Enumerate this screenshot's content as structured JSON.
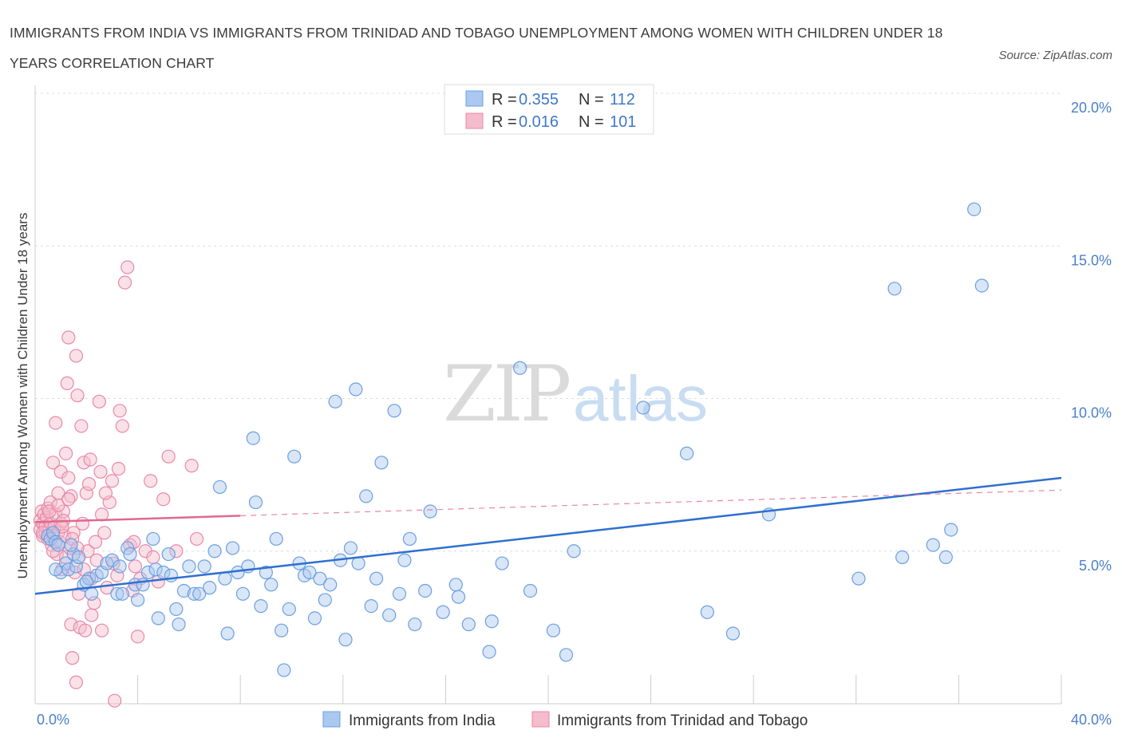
{
  "header": {
    "title": "IMMIGRANTS FROM INDIA VS IMMIGRANTS FROM TRINIDAD AND TOBAGO UNEMPLOYMENT AMONG WOMEN WITH CHILDREN UNDER 18 YEARS CORRELATION CHART",
    "source": "Source: ZipAtlas.com"
  },
  "watermark": {
    "zip": "ZIP",
    "atlas": "atlas"
  },
  "legend": {
    "rows": [
      {
        "r_label": "R =",
        "r_value": "0.355",
        "n_label": "N =",
        "n_value": "112"
      },
      {
        "r_label": "R =",
        "r_value": "0.016",
        "n_label": "N =",
        "n_value": "101"
      }
    ]
  },
  "chart_data": {
    "type": "scatter",
    "xlabel": "",
    "ylabel": "Unemployment Among Women with Children Under 18 years",
    "xlim": [
      0,
      40
    ],
    "ylim": [
      0,
      20
    ],
    "x_tick_labels": [
      "0.0%",
      "40.0%"
    ],
    "y_ticks": [
      5,
      10,
      15,
      20
    ],
    "y_tick_labels": [
      "5.0%",
      "10.0%",
      "15.0%",
      "20.0%"
    ],
    "grid": true,
    "legend_position": "top-center",
    "colors": {
      "india": "#6a9fe0",
      "india_fill": "#aac8f0",
      "india_line": "#2f6fd0",
      "tt": "#e888a8",
      "tt_fill": "#f4bccd",
      "tt_line": "#e06890"
    },
    "series": [
      {
        "name": "Immigrants from India",
        "key": "india",
        "trend": {
          "x": [
            0,
            40
          ],
          "y": [
            3.6,
            7.4
          ],
          "dashed_from": null
        },
        "points": [
          [
            0.5,
            5.5
          ],
          [
            0.6,
            5.4
          ],
          [
            0.7,
            5.6
          ],
          [
            0.8,
            5.3
          ],
          [
            0.9,
            5.2
          ],
          [
            1.0,
            4.3
          ],
          [
            1.2,
            4.6
          ],
          [
            1.3,
            4.4
          ],
          [
            1.5,
            4.9
          ],
          [
            1.6,
            4.5
          ],
          [
            1.7,
            4.8
          ],
          [
            1.9,
            3.9
          ],
          [
            2.1,
            4.1
          ],
          [
            2.2,
            3.6
          ],
          [
            2.4,
            4.2
          ],
          [
            2.6,
            4.3
          ],
          [
            2.8,
            4.6
          ],
          [
            3.0,
            4.7
          ],
          [
            3.2,
            3.6
          ],
          [
            3.4,
            3.6
          ],
          [
            3.6,
            5.1
          ],
          [
            3.7,
            4.9
          ],
          [
            3.9,
            3.9
          ],
          [
            4.0,
            3.4
          ],
          [
            4.2,
            3.9
          ],
          [
            4.4,
            4.3
          ],
          [
            4.6,
            5.4
          ],
          [
            4.7,
            4.4
          ],
          [
            4.8,
            2.8
          ],
          [
            5.0,
            4.3
          ],
          [
            5.2,
            4.9
          ],
          [
            5.3,
            4.2
          ],
          [
            5.5,
            3.1
          ],
          [
            5.6,
            2.6
          ],
          [
            5.8,
            3.7
          ],
          [
            6.0,
            4.5
          ],
          [
            6.2,
            3.6
          ],
          [
            6.4,
            3.6
          ],
          [
            6.6,
            4.5
          ],
          [
            6.8,
            3.8
          ],
          [
            7.0,
            5.0
          ],
          [
            7.2,
            7.1
          ],
          [
            7.4,
            4.1
          ],
          [
            7.5,
            2.3
          ],
          [
            7.7,
            5.1
          ],
          [
            7.9,
            4.3
          ],
          [
            8.1,
            3.6
          ],
          [
            8.3,
            4.5
          ],
          [
            8.5,
            8.7
          ],
          [
            8.6,
            6.6
          ],
          [
            8.8,
            3.2
          ],
          [
            9.0,
            4.3
          ],
          [
            9.2,
            3.9
          ],
          [
            9.4,
            5.4
          ],
          [
            9.6,
            2.4
          ],
          [
            9.7,
            1.1
          ],
          [
            9.9,
            3.1
          ],
          [
            10.1,
            8.1
          ],
          [
            10.3,
            4.6
          ],
          [
            10.5,
            4.2
          ],
          [
            10.7,
            4.3
          ],
          [
            10.9,
            2.8
          ],
          [
            11.1,
            4.1
          ],
          [
            11.3,
            3.4
          ],
          [
            11.5,
            3.9
          ],
          [
            11.7,
            9.9
          ],
          [
            11.9,
            4.7
          ],
          [
            12.1,
            2.1
          ],
          [
            12.3,
            5.1
          ],
          [
            12.5,
            10.3
          ],
          [
            12.6,
            4.6
          ],
          [
            12.9,
            6.8
          ],
          [
            13.1,
            3.2
          ],
          [
            13.3,
            4.1
          ],
          [
            13.5,
            7.9
          ],
          [
            13.8,
            2.9
          ],
          [
            14.0,
            9.6
          ],
          [
            14.2,
            3.6
          ],
          [
            14.4,
            4.7
          ],
          [
            14.6,
            5.4
          ],
          [
            14.8,
            2.6
          ],
          [
            15.2,
            3.7
          ],
          [
            15.4,
            6.3
          ],
          [
            15.9,
            3.0
          ],
          [
            16.4,
            3.9
          ],
          [
            16.5,
            3.5
          ],
          [
            16.9,
            2.6
          ],
          [
            17.7,
            1.7
          ],
          [
            17.8,
            2.7
          ],
          [
            18.2,
            4.6
          ],
          [
            18.9,
            11.0
          ],
          [
            19.3,
            3.7
          ],
          [
            20.2,
            2.4
          ],
          [
            20.7,
            1.6
          ],
          [
            21.0,
            5.0
          ],
          [
            23.7,
            9.7
          ],
          [
            25.4,
            8.2
          ],
          [
            26.2,
            3.0
          ],
          [
            27.2,
            2.3
          ],
          [
            28.6,
            6.2
          ],
          [
            32.1,
            4.1
          ],
          [
            33.5,
            13.6
          ],
          [
            33.8,
            4.8
          ],
          [
            35.0,
            5.2
          ],
          [
            35.5,
            4.8
          ],
          [
            35.7,
            5.7
          ],
          [
            36.6,
            16.2
          ],
          [
            36.9,
            13.7
          ],
          [
            0.8,
            4.4
          ],
          [
            1.4,
            5.2
          ],
          [
            2.0,
            4.0
          ],
          [
            3.3,
            4.5
          ]
        ]
      },
      {
        "name": "Immigrants from Trinidad and Tobago",
        "key": "tt",
        "trend": {
          "x": [
            0,
            40
          ],
          "y": [
            5.95,
            7.0
          ],
          "solid_to_x": 8.0
        },
        "points": [
          [
            0.2,
            5.7
          ],
          [
            0.2,
            6.0
          ],
          [
            0.25,
            6.3
          ],
          [
            0.3,
            5.5
          ],
          [
            0.3,
            5.9
          ],
          [
            0.35,
            6.2
          ],
          [
            0.4,
            5.6
          ],
          [
            0.4,
            5.8
          ],
          [
            0.45,
            6.1
          ],
          [
            0.5,
            5.4
          ],
          [
            0.5,
            6.4
          ],
          [
            0.55,
            5.7
          ],
          [
            0.6,
            5.9
          ],
          [
            0.6,
            6.6
          ],
          [
            0.65,
            5.2
          ],
          [
            0.7,
            5.5
          ],
          [
            0.7,
            7.9
          ],
          [
            0.75,
            5.8
          ],
          [
            0.8,
            6.2
          ],
          [
            0.8,
            9.2
          ],
          [
            0.85,
            4.9
          ],
          [
            0.9,
            5.6
          ],
          [
            0.9,
            6.9
          ],
          [
            0.95,
            5.3
          ],
          [
            1.0,
            5.9
          ],
          [
            1.0,
            7.6
          ],
          [
            1.05,
            4.4
          ],
          [
            1.1,
            6.3
          ],
          [
            1.1,
            6.0
          ],
          [
            1.15,
            5.5
          ],
          [
            1.2,
            8.2
          ],
          [
            1.2,
            4.8
          ],
          [
            1.25,
            10.5
          ],
          [
            1.3,
            12.0
          ],
          [
            1.3,
            7.4
          ],
          [
            1.35,
            5.1
          ],
          [
            1.4,
            6.8
          ],
          [
            1.4,
            2.6
          ],
          [
            1.45,
            1.5
          ],
          [
            1.5,
            5.6
          ],
          [
            1.55,
            4.3
          ],
          [
            1.6,
            11.4
          ],
          [
            1.6,
            0.7
          ],
          [
            1.65,
            10.1
          ],
          [
            1.7,
            4.8
          ],
          [
            1.7,
            3.6
          ],
          [
            1.75,
            2.5
          ],
          [
            1.8,
            9.1
          ],
          [
            1.85,
            5.9
          ],
          [
            1.9,
            7.9
          ],
          [
            1.95,
            2.4
          ],
          [
            2.0,
            6.9
          ],
          [
            2.05,
            5.0
          ],
          [
            2.1,
            7.2
          ],
          [
            2.2,
            4.1
          ],
          [
            2.2,
            2.9
          ],
          [
            2.3,
            3.3
          ],
          [
            2.4,
            4.7
          ],
          [
            2.5,
            9.9
          ],
          [
            2.6,
            6.2
          ],
          [
            2.6,
            2.4
          ],
          [
            2.7,
            5.6
          ],
          [
            2.8,
            3.8
          ],
          [
            2.9,
            6.6
          ],
          [
            3.0,
            7.3
          ],
          [
            3.1,
            0.1
          ],
          [
            3.2,
            4.2
          ],
          [
            3.3,
            9.6
          ],
          [
            3.4,
            9.1
          ],
          [
            3.5,
            13.8
          ],
          [
            3.6,
            14.3
          ],
          [
            3.7,
            5.2
          ],
          [
            3.8,
            3.7
          ],
          [
            3.9,
            4.5
          ],
          [
            4.0,
            2.2
          ],
          [
            4.1,
            4.1
          ],
          [
            4.3,
            5.0
          ],
          [
            4.5,
            7.3
          ],
          [
            4.6,
            4.8
          ],
          [
            4.8,
            4.0
          ],
          [
            5.0,
            6.7
          ],
          [
            5.2,
            8.1
          ],
          [
            5.5,
            5.0
          ],
          [
            6.1,
            7.8
          ],
          [
            6.3,
            5.4
          ],
          [
            0.3,
            5.6
          ],
          [
            0.55,
            6.3
          ],
          [
            0.7,
            5.0
          ],
          [
            0.9,
            6.5
          ],
          [
            1.05,
            5.8
          ],
          [
            1.3,
            6.7
          ],
          [
            1.45,
            5.4
          ],
          [
            1.65,
            5.1
          ],
          [
            1.9,
            4.4
          ],
          [
            2.15,
            8.0
          ],
          [
            2.35,
            5.3
          ],
          [
            2.55,
            7.6
          ],
          [
            2.75,
            6.9
          ],
          [
            3.05,
            4.6
          ],
          [
            3.25,
            7.7
          ],
          [
            3.85,
            5.3
          ]
        ]
      }
    ]
  },
  "bottom_legend": {
    "items": [
      {
        "label": "Immigrants from India"
      },
      {
        "label": "Immigrants from Trinidad and Tobago"
      }
    ]
  }
}
